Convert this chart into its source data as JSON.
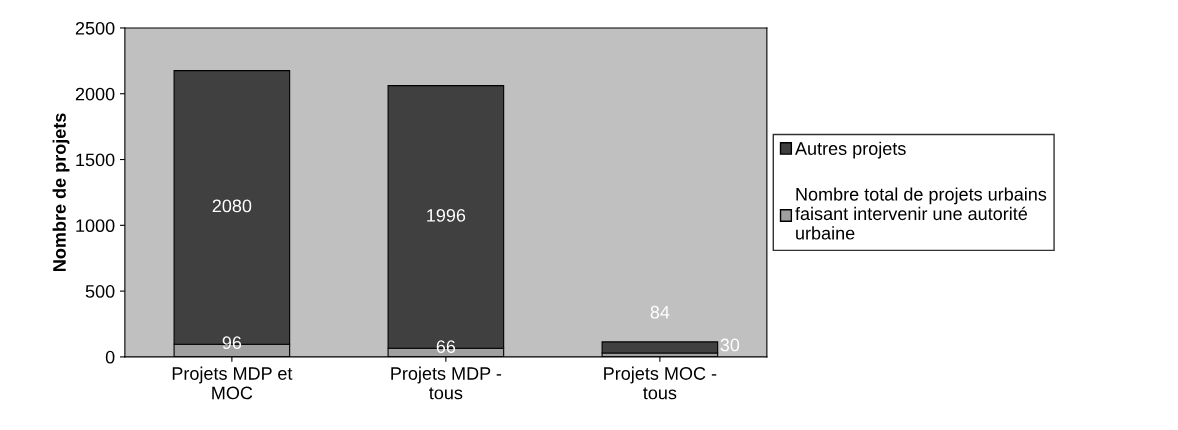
{
  "chart_data": {
    "type": "bar",
    "stacked": true,
    "ylabel": "Nombre de projets",
    "categories": [
      "Projets MDP et\nMOC",
      "Projets MDP -\ntous",
      "Projets MOC -\ntous"
    ],
    "series": [
      {
        "name": "Nombre total de projets urbains\nfaisant intervenir une autorité\nurbaine",
        "color": "#a0a0a0",
        "values": [
          96,
          66,
          30
        ]
      },
      {
        "name": "Autres projets",
        "color": "#404040",
        "values": [
          2080,
          1996,
          84
        ]
      }
    ],
    "ylim": [
      0,
      2500
    ],
    "yticks": [
      0,
      500,
      1000,
      1500,
      2000,
      2500
    ],
    "data_labels": true,
    "legend": "right",
    "grid": false
  }
}
